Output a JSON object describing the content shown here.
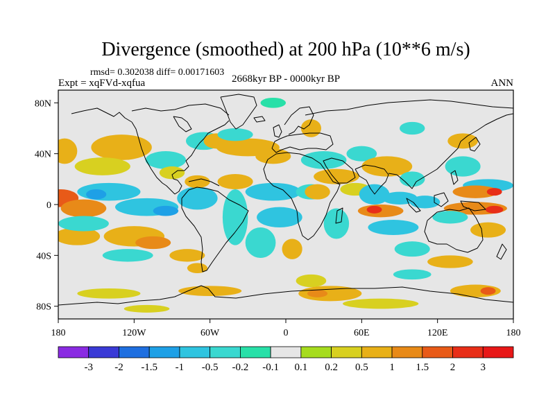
{
  "chart_data": {
    "type": "heatmap",
    "title": "Divergence (smoothed) at 200 hPa (10**6 m/s)",
    "stats": "rmsd= 0.302038 diff= 0.00171603",
    "experiment": "Expt = xqFVd-xqfua",
    "period": "2668kyr BP - 0000kyr BP",
    "season": "ANN",
    "x_range": [
      -180,
      180
    ],
    "y_range": [
      -90,
      90
    ],
    "x_ticks": [
      {
        "value": -180,
        "label": "180"
      },
      {
        "value": -120,
        "label": "120W"
      },
      {
        "value": -60,
        "label": "60W"
      },
      {
        "value": 0,
        "label": "0"
      },
      {
        "value": 60,
        "label": "60E"
      },
      {
        "value": 120,
        "label": "120E"
      },
      {
        "value": 180,
        "label": "180"
      }
    ],
    "y_ticks": [
      {
        "value": 80,
        "label": "80N"
      },
      {
        "value": 40,
        "label": "40N"
      },
      {
        "value": 0,
        "label": "0"
      },
      {
        "value": -40,
        "label": "40S"
      },
      {
        "value": -80,
        "label": "80S"
      }
    ],
    "levels": [
      -3,
      -2,
      -1.5,
      -1,
      -0.5,
      -0.2,
      -0.1,
      0.1,
      0.2,
      0.5,
      1,
      1.5,
      2,
      3
    ],
    "level_labels": [
      "-3",
      "-2",
      "-1.5",
      "-1",
      "-0.5",
      "-0.2",
      "-0.1",
      "0.1",
      "0.2",
      "0.5",
      "1",
      "1.5",
      "2",
      "3"
    ],
    "colors": [
      "#8a2be2",
      "#3a3ad6",
      "#1e6fe0",
      "#1ea0e6",
      "#2fc4e0",
      "#3ad8d0",
      "#28e0a8",
      "#e6e6e6",
      "#a6dc1e",
      "#d8d020",
      "#e8b018",
      "#e88a18",
      "#e85a18",
      "#e82e18",
      "#e81818"
    ],
    "anomalies": [
      {
        "lon": -178,
        "lat": 5,
        "rx": 14,
        "ry": 7,
        "v": 1.6
      },
      {
        "lon": -160,
        "lat": -3,
        "rx": 18,
        "ry": 7,
        "v": 1.3
      },
      {
        "lon": -175,
        "lat": 42,
        "rx": 10,
        "ry": 10,
        "v": 0.6
      },
      {
        "lon": -130,
        "lat": 45,
        "rx": 24,
        "ry": 10,
        "v": 0.6
      },
      {
        "lon": -145,
        "lat": 30,
        "rx": 22,
        "ry": 7,
        "v": 0.35
      },
      {
        "lon": -165,
        "lat": -25,
        "rx": 18,
        "ry": 7,
        "v": 0.6
      },
      {
        "lon": -120,
        "lat": -25,
        "rx": 24,
        "ry": 8,
        "v": 0.8
      },
      {
        "lon": -105,
        "lat": -30,
        "rx": 14,
        "ry": 5,
        "v": 1.3
      },
      {
        "lon": -78,
        "lat": -40,
        "rx": 14,
        "ry": 5,
        "v": 0.7
      },
      {
        "lon": -140,
        "lat": 10,
        "rx": 25,
        "ry": 7,
        "v": -0.6
      },
      {
        "lon": -150,
        "lat": 8,
        "rx": 8,
        "ry": 4,
        "v": -1.2
      },
      {
        "lon": -160,
        "lat": -15,
        "rx": 20,
        "ry": 6,
        "v": -0.5
      },
      {
        "lon": -110,
        "lat": -2,
        "rx": 25,
        "ry": 7,
        "v": -0.7
      },
      {
        "lon": -95,
        "lat": -5,
        "rx": 10,
        "ry": 4,
        "v": -1.1
      },
      {
        "lon": -125,
        "lat": -40,
        "rx": 20,
        "ry": 5,
        "v": -0.4
      },
      {
        "lon": -70,
        "lat": 5,
        "rx": 16,
        "ry": 9,
        "v": -0.6
      },
      {
        "lon": -40,
        "lat": -10,
        "rx": 10,
        "ry": 22,
        "v": -0.5
      },
      {
        "lon": -95,
        "lat": 35,
        "rx": 16,
        "ry": 7,
        "v": -0.4
      },
      {
        "lon": -65,
        "lat": 50,
        "rx": 14,
        "ry": 7,
        "v": -0.5
      },
      {
        "lon": -90,
        "lat": 25,
        "rx": 10,
        "ry": 5,
        "v": 0.4
      },
      {
        "lon": -70,
        "lat": 18,
        "rx": 10,
        "ry": 5,
        "v": 0.6
      },
      {
        "lon": -40,
        "lat": 18,
        "rx": 14,
        "ry": 6,
        "v": 0.6
      },
      {
        "lon": -55,
        "lat": 50,
        "rx": 10,
        "ry": 6,
        "v": 0.6
      },
      {
        "lon": -70,
        "lat": -50,
        "rx": 8,
        "ry": 4,
        "v": 0.7
      },
      {
        "lon": -10,
        "lat": 80,
        "rx": 10,
        "ry": 4,
        "v": -0.2
      },
      {
        "lon": 20,
        "lat": 60,
        "rx": 8,
        "ry": 7,
        "v": 0.5
      },
      {
        "lon": -30,
        "lat": 45,
        "rx": 25,
        "ry": 7,
        "v": 0.7
      },
      {
        "lon": -40,
        "lat": 55,
        "rx": 14,
        "ry": 5,
        "v": -0.4
      },
      {
        "lon": -10,
        "lat": 38,
        "rx": 14,
        "ry": 6,
        "v": 0.6
      },
      {
        "lon": 30,
        "lat": 35,
        "rx": 18,
        "ry": 7,
        "v": -0.5
      },
      {
        "lon": 60,
        "lat": 40,
        "rx": 12,
        "ry": 6,
        "v": -0.3
      },
      {
        "lon": -10,
        "lat": 10,
        "rx": 22,
        "ry": 7,
        "v": -0.6
      },
      {
        "lon": 20,
        "lat": 10,
        "rx": 12,
        "ry": 6,
        "v": -0.4
      },
      {
        "lon": -5,
        "lat": -10,
        "rx": 18,
        "ry": 8,
        "v": -0.6
      },
      {
        "lon": -20,
        "lat": -30,
        "rx": 12,
        "ry": 12,
        "v": -0.5
      },
      {
        "lon": 5,
        "lat": -35,
        "rx": 8,
        "ry": 8,
        "v": 0.6
      },
      {
        "lon": 25,
        "lat": 10,
        "rx": 10,
        "ry": 6,
        "v": 0.5
      },
      {
        "lon": 40,
        "lat": 22,
        "rx": 18,
        "ry": 6,
        "v": 0.6
      },
      {
        "lon": 40,
        "lat": -15,
        "rx": 10,
        "ry": 12,
        "v": -0.5
      },
      {
        "lon": 55,
        "lat": 12,
        "rx": 12,
        "ry": 5,
        "v": 0.4
      },
      {
        "lon": 70,
        "lat": 8,
        "rx": 12,
        "ry": 8,
        "v": -0.6
      },
      {
        "lon": 75,
        "lat": -5,
        "rx": 18,
        "ry": 5,
        "v": 1.4
      },
      {
        "lon": 70,
        "lat": -4,
        "rx": 6,
        "ry": 3,
        "v": 2.2
      },
      {
        "lon": 85,
        "lat": -18,
        "rx": 20,
        "ry": 6,
        "v": -0.6
      },
      {
        "lon": 90,
        "lat": 5,
        "rx": 14,
        "ry": 5,
        "v": -0.8
      },
      {
        "lon": 80,
        "lat": 30,
        "rx": 20,
        "ry": 8,
        "v": 0.6
      },
      {
        "lon": 100,
        "lat": 20,
        "rx": 10,
        "ry": 6,
        "v": -0.5
      },
      {
        "lon": 110,
        "lat": 2,
        "rx": 12,
        "ry": 5,
        "v": -0.6
      },
      {
        "lon": 140,
        "lat": 30,
        "rx": 14,
        "ry": 8,
        "v": -0.5
      },
      {
        "lon": 160,
        "lat": 15,
        "rx": 20,
        "ry": 5,
        "v": -0.6
      },
      {
        "lon": 150,
        "lat": 10,
        "rx": 18,
        "ry": 5,
        "v": 1.1
      },
      {
        "lon": 165,
        "lat": 10,
        "rx": 6,
        "ry": 3,
        "v": 2.1
      },
      {
        "lon": 150,
        "lat": -3,
        "rx": 25,
        "ry": 5,
        "v": 1.4
      },
      {
        "lon": 165,
        "lat": -4,
        "rx": 7,
        "ry": 3,
        "v": 2.2
      },
      {
        "lon": 130,
        "lat": -10,
        "rx": 14,
        "ry": 5,
        "v": -0.4
      },
      {
        "lon": 160,
        "lat": -20,
        "rx": 14,
        "ry": 6,
        "v": 0.7
      },
      {
        "lon": 130,
        "lat": -45,
        "rx": 18,
        "ry": 5,
        "v": 0.6
      },
      {
        "lon": 100,
        "lat": -35,
        "rx": 14,
        "ry": 6,
        "v": -0.3
      },
      {
        "lon": 140,
        "lat": 50,
        "rx": 12,
        "ry": 6,
        "v": 0.5
      },
      {
        "lon": 100,
        "lat": 60,
        "rx": 10,
        "ry": 5,
        "v": -0.3
      },
      {
        "lon": -140,
        "lat": -70,
        "rx": 25,
        "ry": 4,
        "v": 0.4
      },
      {
        "lon": -60,
        "lat": -68,
        "rx": 25,
        "ry": 4,
        "v": 0.5
      },
      {
        "lon": -110,
        "lat": -82,
        "rx": 18,
        "ry": 3,
        "v": 0.3
      },
      {
        "lon": 20,
        "lat": -60,
        "rx": 12,
        "ry": 5,
        "v": 0.4
      },
      {
        "lon": 35,
        "lat": -70,
        "rx": 25,
        "ry": 6,
        "v": 0.7
      },
      {
        "lon": 25,
        "lat": -70,
        "rx": 8,
        "ry": 3,
        "v": 1.2
      },
      {
        "lon": 100,
        "lat": -55,
        "rx": 15,
        "ry": 4,
        "v": -0.4
      },
      {
        "lon": 150,
        "lat": -68,
        "rx": 20,
        "ry": 5,
        "v": 0.8
      },
      {
        "lon": 160,
        "lat": -68,
        "rx": 6,
        "ry": 3,
        "v": 1.5
      },
      {
        "lon": 75,
        "lat": -78,
        "rx": 30,
        "ry": 4,
        "v": 0.3
      }
    ]
  }
}
